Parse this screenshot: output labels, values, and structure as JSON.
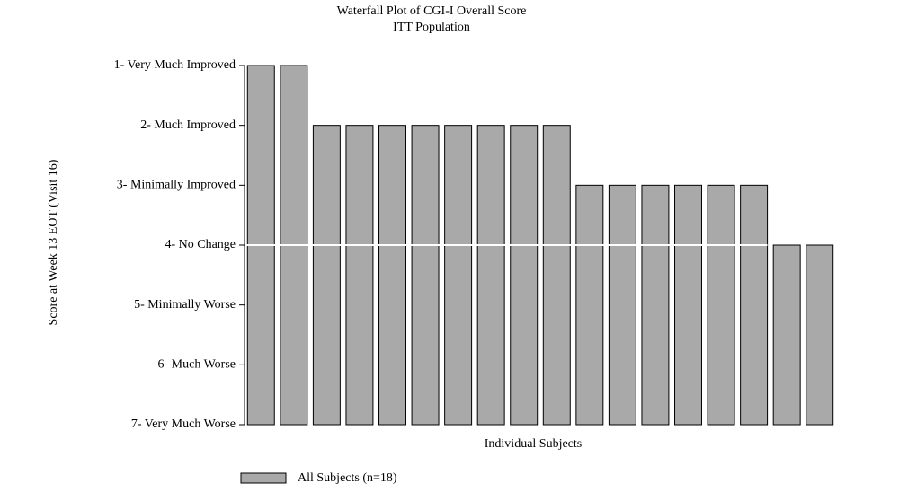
{
  "chart_data": {
    "type": "bar",
    "title": "Waterfall Plot of CGI-I Overall Score",
    "subtitle": "ITT Population",
    "xlabel": "Individual Subjects",
    "ylabel": "Score at Week 13 EOT (Visit 16)",
    "ylim": [
      7,
      1
    ],
    "yticks": [
      {
        "value": 1,
        "label": "1- Very Much Improved"
      },
      {
        "value": 2,
        "label": "2- Much Improved"
      },
      {
        "value": 3,
        "label": "3- Minimally Improved"
      },
      {
        "value": 4,
        "label": "4- No Change"
      },
      {
        "value": 5,
        "label": "5- Minimally Worse"
      },
      {
        "value": 6,
        "label": "6- Much Worse"
      },
      {
        "value": 7,
        "label": "7- Very Much Worse"
      }
    ],
    "reference_line": {
      "value": 4,
      "color": "#ffffff"
    },
    "series": [
      {
        "name": "All Subjects (n=18)",
        "color": "#a9a9a9",
        "values": [
          1,
          1,
          2,
          2,
          2,
          2,
          2,
          2,
          2,
          2,
          3,
          3,
          3,
          3,
          3,
          3,
          4,
          4
        ]
      }
    ]
  }
}
